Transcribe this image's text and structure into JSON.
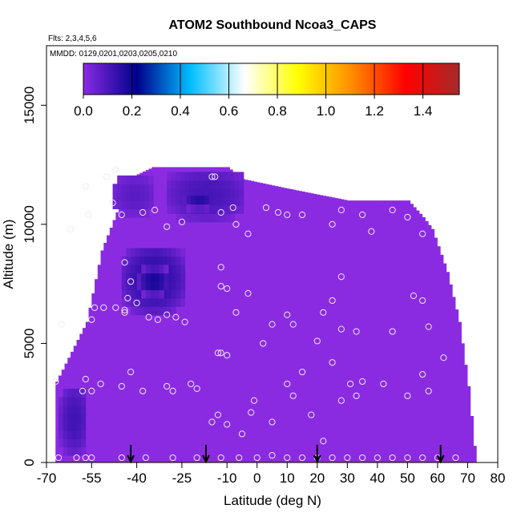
{
  "chart_data": {
    "type": "heatmap",
    "title": "ATOM2 Southbound Ncoa3_CAPS",
    "notes": [
      "Flts: 2,3,4,5,6",
      "MMDD: 0129,0201,0203,0205,0210"
    ],
    "xlabel": "Latitude (deg N)",
    "ylabel": "Altitude (m)",
    "xlim": [
      -70,
      80
    ],
    "ylim": [
      0,
      17500
    ],
    "xticks": [
      -70,
      -55,
      -40,
      -25,
      -10,
      0,
      10,
      20,
      30,
      40,
      50,
      60,
      70,
      80
    ],
    "yticks": [
      0,
      5000,
      10000,
      15000
    ],
    "colorbar": {
      "range": [
        0.0,
        1.55
      ],
      "ticks": [
        "0.0",
        "0.2",
        "0.4",
        "0.6",
        "0.8",
        "1.0",
        "1.2",
        "1.4"
      ],
      "tick_values": [
        0.0,
        0.2,
        0.4,
        0.6,
        0.8,
        1.0,
        1.2,
        1.4
      ],
      "colors": [
        "#8a2be2",
        "#00008b",
        "#00bfff",
        "#ffffff",
        "#ffff00",
        "#ff8c00",
        "#ff0000",
        "#a52a2a"
      ]
    },
    "field": {
      "background_value": 0.02,
      "background_color": "#8a2be2",
      "coverage": [
        [
          -67,
          0,
          3400
        ],
        [
          -57,
          0,
          5900
        ],
        [
          -52,
          0,
          8900
        ],
        [
          -47,
          0,
          10500
        ],
        [
          -45,
          0,
          11800
        ],
        [
          -35,
          0,
          12400
        ],
        [
          -10,
          0,
          12400
        ],
        [
          -5,
          0,
          11900
        ],
        [
          10,
          0,
          11500
        ],
        [
          30,
          0,
          11000
        ],
        [
          50,
          0,
          11000
        ],
        [
          55,
          0,
          10300
        ],
        [
          58,
          0,
          9800
        ],
        [
          63,
          0,
          8000
        ],
        [
          67,
          0,
          5900
        ],
        [
          70,
          0,
          3200
        ],
        [
          72,
          0,
          700
        ]
      ],
      "enhancements": [
        {
          "lat": [
            -66,
            -57
          ],
          "alt": [
            300,
            3000
          ],
          "value": 0.12
        },
        {
          "lat": [
            -45,
            -25
          ],
          "alt": [
            6200,
            8900
          ],
          "value": 0.16
        },
        {
          "lat": [
            -40,
            -30
          ],
          "alt": [
            6900,
            8000
          ],
          "value": 0.19
        },
        {
          "lat": [
            -30,
            -5
          ],
          "alt": [
            10100,
            12100
          ],
          "value": 0.11
        },
        {
          "lat": [
            -25,
            -15
          ],
          "alt": [
            10500,
            11200
          ],
          "value": 0.16
        },
        {
          "lat": [
            -48,
            -35
          ],
          "alt": [
            10300,
            11800
          ],
          "value": 0.08
        }
      ]
    },
    "samples": [
      [
        -67,
        3400
      ],
      [
        -65,
        5800
      ],
      [
        -66,
        200
      ],
      [
        -60,
        200
      ],
      [
        -57,
        200
      ],
      [
        -55,
        200
      ],
      [
        -45,
        200
      ],
      [
        -37,
        200
      ],
      [
        -28,
        200
      ],
      [
        -20,
        200
      ],
      [
        -12,
        200
      ],
      [
        -6,
        200
      ],
      [
        0,
        200
      ],
      [
        5,
        300
      ],
      [
        10,
        200
      ],
      [
        15,
        200
      ],
      [
        20,
        200
      ],
      [
        25,
        200
      ],
      [
        30,
        200
      ],
      [
        35,
        200
      ],
      [
        40,
        200
      ],
      [
        45,
        200
      ],
      [
        50,
        200
      ],
      [
        55,
        200
      ],
      [
        60,
        200
      ],
      [
        66,
        200
      ],
      [
        -58,
        3000
      ],
      [
        -57,
        3500
      ],
      [
        -55,
        3000
      ],
      [
        -52,
        3300
      ],
      [
        -45,
        3200
      ],
      [
        -42,
        3800
      ],
      [
        -38,
        3000
      ],
      [
        -30,
        3200
      ],
      [
        -28,
        3000
      ],
      [
        -22,
        3300
      ],
      [
        -20,
        3100
      ],
      [
        -15,
        1700
      ],
      [
        -13,
        2000
      ],
      [
        -10,
        1600
      ],
      [
        -5,
        1200
      ],
      [
        -2,
        2100
      ],
      [
        -1,
        2600
      ],
      [
        5,
        1700
      ],
      [
        10,
        3300
      ],
      [
        12,
        2800
      ],
      [
        15,
        3800
      ],
      [
        18,
        2000
      ],
      [
        22,
        900
      ],
      [
        25,
        4200
      ],
      [
        28,
        2600
      ],
      [
        31,
        3300
      ],
      [
        33,
        2800
      ],
      [
        35,
        3400
      ],
      [
        42,
        3300
      ],
      [
        50,
        2800
      ],
      [
        55,
        3700
      ],
      [
        57,
        3000
      ],
      [
        62,
        4400
      ],
      [
        -55,
        6000
      ],
      [
        -54,
        6500
      ],
      [
        -51,
        6500
      ],
      [
        -47,
        6500
      ],
      [
        -44,
        6300
      ],
      [
        -43,
        6900
      ],
      [
        -40,
        6700
      ],
      [
        -36,
        6100
      ],
      [
        -33,
        6000
      ],
      [
        -30,
        6200
      ],
      [
        -27,
        6100
      ],
      [
        -24,
        5900
      ],
      [
        -13,
        4600
      ],
      [
        -12,
        4600
      ],
      [
        -10,
        4500
      ],
      [
        -12,
        7400
      ],
      [
        -10,
        7300
      ],
      [
        -7,
        6300
      ],
      [
        -3,
        7100
      ],
      [
        2,
        5000
      ],
      [
        5,
        5800
      ],
      [
        10,
        6200
      ],
      [
        12,
        5800
      ],
      [
        20,
        5100
      ],
      [
        22,
        6300
      ],
      [
        25,
        6800
      ],
      [
        28,
        5600
      ],
      [
        28,
        7800
      ],
      [
        33,
        5500
      ],
      [
        45,
        5500
      ],
      [
        52,
        7000
      ],
      [
        55,
        6800
      ],
      [
        57,
        5700
      ],
      [
        -44,
        8400
      ],
      [
        -42,
        7600
      ],
      [
        -44,
        6400
      ],
      [
        -12,
        8200
      ],
      [
        -62,
        9800
      ],
      [
        -57,
        11600
      ],
      [
        -56,
        10400
      ],
      [
        -50,
        12000
      ],
      [
        -48,
        10900
      ],
      [
        -45,
        10400
      ],
      [
        -47,
        12300
      ],
      [
        -38,
        10500
      ],
      [
        -34,
        10600
      ],
      [
        -30,
        9900
      ],
      [
        -25,
        10100
      ],
      [
        -15,
        12000
      ],
      [
        -14,
        12000
      ],
      [
        -12,
        10500
      ],
      [
        -8,
        10700
      ],
      [
        -7,
        10000
      ],
      [
        -3,
        9600
      ],
      [
        3,
        10700
      ],
      [
        7,
        10500
      ],
      [
        10,
        10400
      ],
      [
        15,
        10400
      ],
      [
        25,
        10000
      ],
      [
        28,
        10600
      ],
      [
        35,
        10400
      ],
      [
        38,
        9700
      ],
      [
        45,
        10600
      ],
      [
        50,
        10300
      ],
      [
        55,
        9600
      ]
    ],
    "arrows_lat": [
      -42,
      -17,
      20,
      61
    ]
  }
}
